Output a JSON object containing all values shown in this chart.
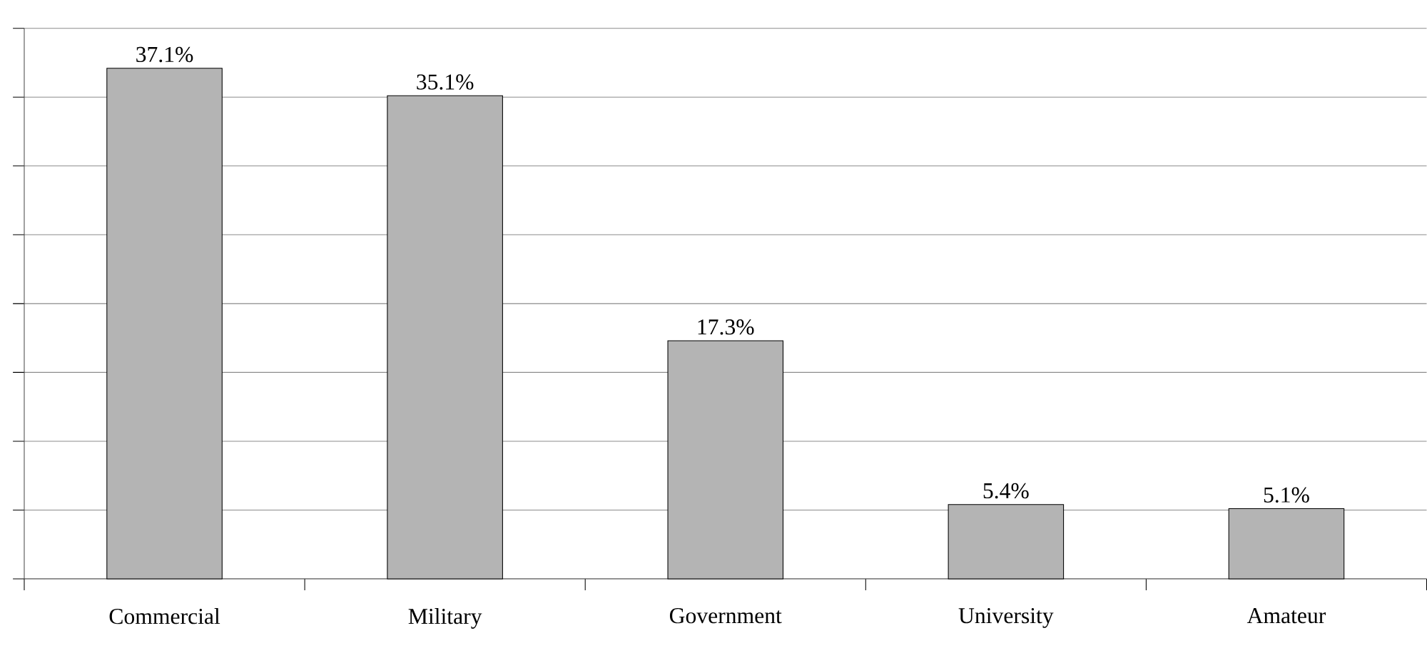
{
  "chart_data": {
    "type": "bar",
    "categories": [
      "Commercial",
      "Military",
      "Government",
      "University",
      "Amateur"
    ],
    "values": [
      37.1,
      35.1,
      17.3,
      5.4,
      5.1
    ],
    "value_labels": [
      "37.1%",
      "35.1%",
      "17.3%",
      "5.4%",
      "5.1%"
    ],
    "color": "#b4b4b4",
    "ylim": [
      0,
      40
    ],
    "yticks": [
      {
        "value": 0,
        "label": null
      },
      {
        "value": 5,
        "label": null
      },
      {
        "value": 10,
        "label": null
      },
      {
        "value": 15,
        "label": null
      },
      {
        "value": 20,
        "label": null
      },
      {
        "value": 25,
        "label": null
      },
      {
        "value": 30,
        "label": null
      },
      {
        "value": 35,
        "label": null
      },
      {
        "value": 40,
        "label": null
      }
    ],
    "grid": "y",
    "tick_labels": "x"
  }
}
